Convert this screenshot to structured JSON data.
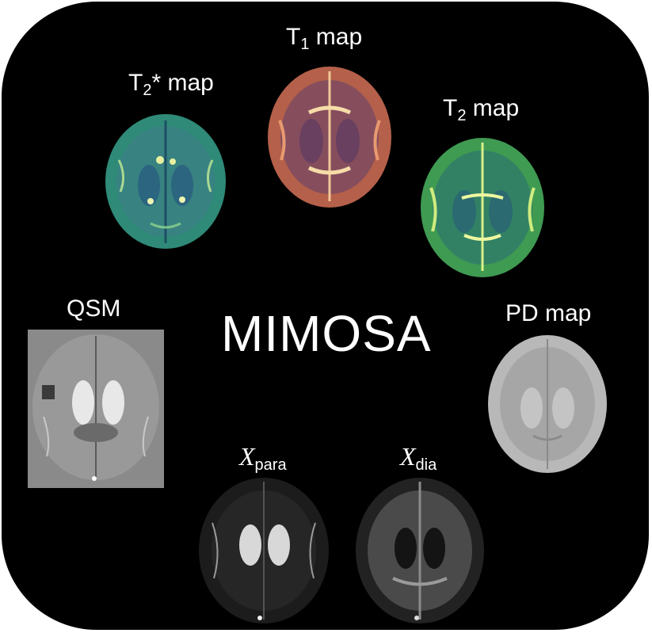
{
  "title": "MIMOSA",
  "maps": {
    "t2star": {
      "prefix": "T",
      "sub": "2",
      "suffix": "* map"
    },
    "t1": {
      "prefix": "T",
      "sub": "1",
      "suffix": " map"
    },
    "t2": {
      "prefix": "T",
      "sub": "2",
      "suffix": " map"
    },
    "qsm": {
      "label": "QSM"
    },
    "pd": {
      "label": "PD map"
    },
    "xpara": {
      "symbol": "X",
      "sub": "para"
    },
    "xdia": {
      "symbol": "X",
      "sub": "dia"
    }
  },
  "colors": {
    "background": "#000000",
    "t2star_fill": "#2f8a78",
    "t1_fill": "#b5604a",
    "t2_fill": "#3f9a52",
    "qsm_bg": "#8a8a8a",
    "pd_fill": "#b8b8b8"
  }
}
